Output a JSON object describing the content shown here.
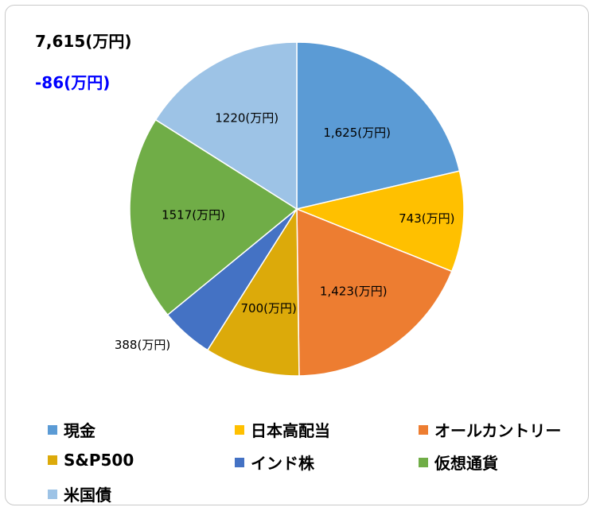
{
  "summary": {
    "total": "7,615(万円)",
    "change": "-86(万円)",
    "change_color": "#0000ff"
  },
  "chart_data": {
    "type": "pie",
    "title": "",
    "start_angle_deg": 0,
    "direction": "clockwise",
    "legend_position": "bottom",
    "slices": [
      {
        "name": "現金",
        "value": 1625,
        "label": "1,625(万円)",
        "color": "#5b9bd5"
      },
      {
        "name": "日本高配当",
        "value": 743,
        "label": "743(万円)",
        "color": "#ffc000"
      },
      {
        "name": "オールカントリー",
        "value": 1423,
        "label": "1,423(万円)",
        "color": "#ed7d31"
      },
      {
        "name": "S&P500",
        "value": 700,
        "label": "700(万円)",
        "color": "#dcaa0a"
      },
      {
        "name": "インド株",
        "value": 388,
        "label": "388(万円)",
        "color": "#4472c4"
      },
      {
        "name": "仮想通貨",
        "value": 1517,
        "label": "1517(万円)",
        "color": "#70ad47"
      },
      {
        "name": "米国債",
        "value": 1220,
        "label": "1220(万円)",
        "color": "#9dc3e6"
      }
    ]
  }
}
